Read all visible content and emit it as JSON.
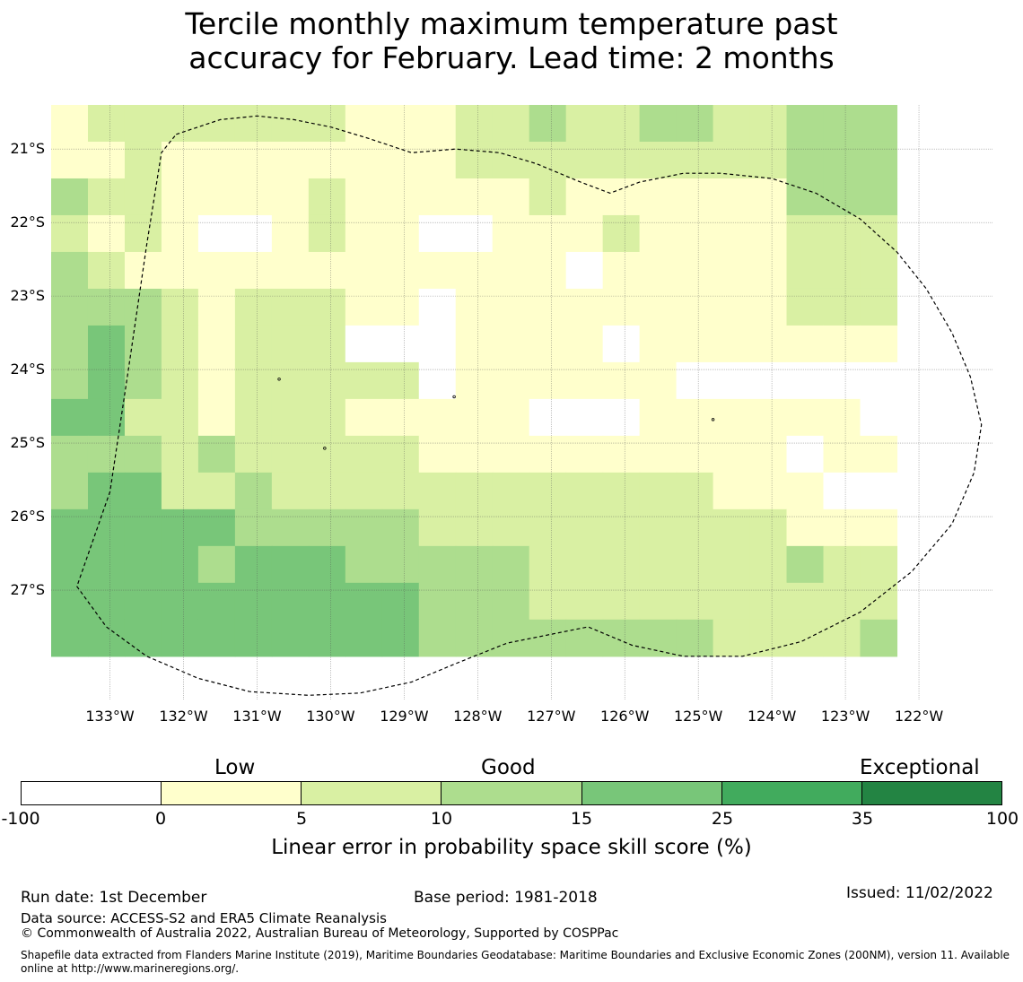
{
  "title": {
    "line1": "Tercile monthly maximum temperature past",
    "line2": "accuracy for February. Lead time: 2 months"
  },
  "colors": {
    "c0": "#ffffff",
    "c1": "#ffffcc",
    "c2": "#d9f0a3",
    "c3": "#addd8e",
    "c4": "#78c679",
    "c5": "#41ab5d",
    "c6": "#238443"
  },
  "map": {
    "lon_range": [
      -133.8,
      -121.0
    ],
    "lat_range": [
      -20.4,
      -28.5
    ],
    "cell_size_deg": 0.5,
    "grid_start": {
      "lon": -133.8,
      "lat": -20.4
    },
    "grid_cols": 23,
    "grid_rows": 15,
    "class_grid": [
      [
        1,
        2,
        2,
        2,
        2,
        2,
        2,
        2,
        1,
        1,
        1,
        2,
        2,
        3,
        2,
        2,
        3,
        3,
        2,
        2,
        3,
        3,
        3
      ],
      [
        1,
        1,
        2,
        1,
        1,
        1,
        1,
        1,
        1,
        1,
        1,
        2,
        2,
        2,
        2,
        2,
        2,
        2,
        2,
        2,
        3,
        3,
        3
      ],
      [
        3,
        2,
        2,
        1,
        1,
        1,
        1,
        2,
        1,
        1,
        1,
        1,
        1,
        2,
        1,
        1,
        1,
        1,
        1,
        1,
        3,
        3,
        3
      ],
      [
        2,
        1,
        2,
        1,
        0,
        0,
        1,
        2,
        1,
        1,
        0,
        0,
        1,
        1,
        1,
        2,
        1,
        1,
        1,
        1,
        2,
        2,
        2
      ],
      [
        3,
        2,
        1,
        1,
        1,
        1,
        1,
        1,
        1,
        1,
        1,
        1,
        1,
        1,
        0,
        1,
        1,
        1,
        1,
        1,
        2,
        2,
        2
      ],
      [
        3,
        3,
        3,
        2,
        1,
        2,
        2,
        2,
        1,
        1,
        0,
        1,
        1,
        1,
        1,
        1,
        1,
        1,
        1,
        1,
        2,
        2,
        2
      ],
      [
        3,
        4,
        3,
        2,
        1,
        2,
        2,
        2,
        0,
        0,
        0,
        1,
        1,
        1,
        1,
        0,
        1,
        1,
        1,
        1,
        1,
        1,
        1
      ],
      [
        3,
        4,
        3,
        2,
        1,
        2,
        2,
        2,
        2,
        2,
        0,
        1,
        1,
        1,
        1,
        1,
        1,
        0,
        0,
        0,
        0,
        0,
        0
      ],
      [
        4,
        4,
        2,
        2,
        1,
        2,
        2,
        2,
        1,
        1,
        1,
        1,
        1,
        0,
        0,
        0,
        1,
        1,
        1,
        1,
        1,
        1,
        0
      ],
      [
        3,
        3,
        3,
        2,
        3,
        2,
        2,
        2,
        2,
        2,
        1,
        1,
        1,
        1,
        1,
        1,
        1,
        1,
        1,
        1,
        0,
        1,
        1
      ],
      [
        3,
        4,
        4,
        2,
        2,
        3,
        2,
        2,
        2,
        2,
        2,
        2,
        2,
        2,
        2,
        2,
        2,
        2,
        1,
        1,
        1,
        0,
        0
      ],
      [
        4,
        4,
        4,
        4,
        4,
        3,
        3,
        3,
        3,
        3,
        2,
        2,
        2,
        2,
        2,
        2,
        2,
        2,
        2,
        2,
        1,
        1,
        1
      ],
      [
        4,
        4,
        4,
        4,
        3,
        4,
        4,
        4,
        3,
        3,
        3,
        3,
        3,
        2,
        2,
        2,
        2,
        2,
        2,
        2,
        3,
        2,
        2
      ],
      [
        4,
        4,
        4,
        4,
        4,
        4,
        4,
        4,
        4,
        4,
        3,
        3,
        3,
        2,
        2,
        2,
        2,
        2,
        2,
        2,
        2,
        2,
        2
      ],
      [
        4,
        4,
        4,
        4,
        4,
        4,
        4,
        4,
        4,
        4,
        3,
        3,
        3,
        3,
        3,
        3,
        3,
        3,
        2,
        2,
        2,
        2,
        3
      ]
    ],
    "lat_ticks": [
      {
        "value": -21,
        "label": "21°S"
      },
      {
        "value": -22,
        "label": "22°S"
      },
      {
        "value": -23,
        "label": "23°S"
      },
      {
        "value": -24,
        "label": "24°S"
      },
      {
        "value": -25,
        "label": "25°S"
      },
      {
        "value": -26,
        "label": "26°S"
      },
      {
        "value": -27,
        "label": "27°S"
      }
    ],
    "lon_ticks": [
      {
        "value": -133,
        "label": "133°W"
      },
      {
        "value": -132,
        "label": "132°W"
      },
      {
        "value": -131,
        "label": "131°W"
      },
      {
        "value": -130,
        "label": "130°W"
      },
      {
        "value": -129,
        "label": "129°W"
      },
      {
        "value": -128,
        "label": "128°W"
      },
      {
        "value": -127,
        "label": "127°W"
      },
      {
        "value": -126,
        "label": "126°W"
      },
      {
        "value": -125,
        "label": "125°W"
      },
      {
        "value": -124,
        "label": "124°W"
      },
      {
        "value": -123,
        "label": "123°W"
      },
      {
        "value": -122,
        "label": "122°W"
      }
    ],
    "eez_boundary": [
      [
        -132.1,
        -20.8
      ],
      [
        -131.5,
        -20.6
      ],
      [
        -131.0,
        -20.55
      ],
      [
        -130.5,
        -20.6
      ],
      [
        -130.0,
        -20.7
      ],
      [
        -129.5,
        -20.85
      ],
      [
        -128.9,
        -21.05
      ],
      [
        -128.3,
        -21.0
      ],
      [
        -127.7,
        -21.05
      ],
      [
        -127.2,
        -21.2
      ],
      [
        -126.6,
        -21.45
      ],
      [
        -126.2,
        -21.6
      ],
      [
        -125.8,
        -21.45
      ],
      [
        -125.2,
        -21.33
      ],
      [
        -124.7,
        -21.33
      ],
      [
        -124.0,
        -21.4
      ],
      [
        -123.4,
        -21.6
      ],
      [
        -122.8,
        -21.95
      ],
      [
        -122.3,
        -22.4
      ],
      [
        -121.9,
        -22.9
      ],
      [
        -121.55,
        -23.5
      ],
      [
        -121.3,
        -24.1
      ],
      [
        -121.15,
        -24.75
      ],
      [
        -121.25,
        -25.4
      ],
      [
        -121.55,
        -26.1
      ],
      [
        -122.1,
        -26.75
      ],
      [
        -122.8,
        -27.3
      ],
      [
        -123.6,
        -27.7
      ],
      [
        -124.4,
        -27.9
      ],
      [
        -125.2,
        -27.9
      ],
      [
        -125.9,
        -27.75
      ],
      [
        -126.5,
        -27.5
      ],
      [
        -127.1,
        -27.62
      ],
      [
        -127.6,
        -27.72
      ],
      [
        -128.3,
        -28.0
      ],
      [
        -128.9,
        -28.25
      ],
      [
        -129.6,
        -28.4
      ],
      [
        -130.3,
        -28.43
      ],
      [
        -131.1,
        -28.38
      ],
      [
        -131.8,
        -28.2
      ],
      [
        -132.5,
        -27.9
      ],
      [
        -133.05,
        -27.5
      ],
      [
        -133.45,
        -26.95
      ],
      [
        -133.0,
        -25.66
      ],
      [
        -132.75,
        -24.0
      ],
      [
        -132.5,
        -22.3
      ],
      [
        -132.3,
        -21.05
      ],
      [
        -132.1,
        -20.8
      ]
    ],
    "islands": [
      {
        "lon": -130.7,
        "lat": -24.13
      },
      {
        "lon": -128.32,
        "lat": -24.37
      },
      {
        "lon": -124.8,
        "lat": -24.68
      },
      {
        "lon": -130.08,
        "lat": -25.07
      }
    ]
  },
  "colorbar": {
    "labels": {
      "low": "Low",
      "good": "Good",
      "exceptional": "Exceptional"
    },
    "ticks": [
      "-100",
      "0",
      "5",
      "10",
      "15",
      "25",
      "35",
      "100"
    ],
    "title": "Linear error in probability space skill score (%)"
  },
  "footer": {
    "run_date": "Run date: 1st December",
    "base_period": "Base period: 1981-2018",
    "issued": "Issued: 11/02/2022",
    "data_source": "Data source: ACCESS-S2 and ERA5 Climate Reanalysis",
    "copyright": "© Commonwealth of Australia 2022, Australian Bureau of Meteorology, Supported by COSPPac",
    "shapefile": "Shapefile data extracted from Flanders Marine Institute (2019), Maritime Boundaries Geodatabase: Maritime Boundaries and Exclusive Economic Zones (200NM), version 11. Available online at http://www.marineregions.org/."
  }
}
